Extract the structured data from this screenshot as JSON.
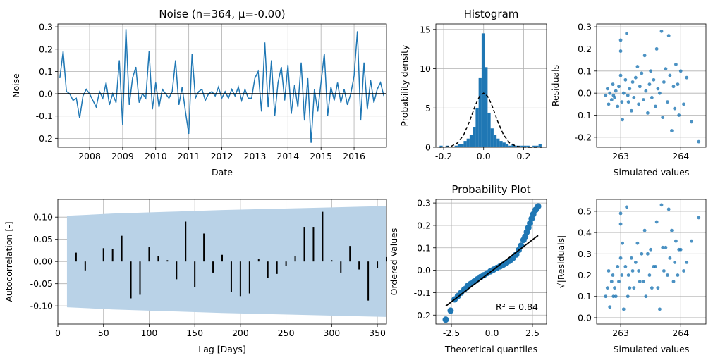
{
  "chart_data": [
    {
      "type": "line",
      "title": "Noise (n=364, μ=-0.00)",
      "xlabel": "Date",
      "ylabel": "Noise",
      "color": "#1f77b4",
      "grid": true,
      "x": [
        2007.1,
        2007.2,
        2007.3,
        2007.4,
        2007.5,
        2007.6,
        2007.7,
        2007.8,
        2007.9,
        2008.0,
        2008.1,
        2008.2,
        2008.3,
        2008.4,
        2008.5,
        2008.6,
        2008.7,
        2008.8,
        2008.9,
        2009.0,
        2009.1,
        2009.2,
        2009.3,
        2009.4,
        2009.5,
        2009.6,
        2009.7,
        2009.8,
        2009.9,
        2010.0,
        2010.1,
        2010.2,
        2010.3,
        2010.4,
        2010.5,
        2010.6,
        2010.7,
        2010.8,
        2010.9,
        2011.0,
        2011.1,
        2011.2,
        2011.3,
        2011.4,
        2011.5,
        2011.6,
        2011.7,
        2011.8,
        2011.9,
        2012.0,
        2012.1,
        2012.2,
        2012.3,
        2012.4,
        2012.5,
        2012.6,
        2012.7,
        2012.8,
        2012.9,
        2013.0,
        2013.1,
        2013.2,
        2013.3,
        2013.4,
        2013.5,
        2013.6,
        2013.7,
        2013.8,
        2013.9,
        2014.0,
        2014.1,
        2014.2,
        2014.3,
        2014.4,
        2014.5,
        2014.6,
        2014.7,
        2014.8,
        2014.9,
        2015.0,
        2015.1,
        2015.2,
        2015.3,
        2015.4,
        2015.5,
        2015.6,
        2015.7,
        2015.8,
        2015.9,
        2016.0,
        2016.1,
        2016.2,
        2016.3,
        2016.4,
        2016.5,
        2016.6,
        2016.7,
        2016.8,
        2016.9
      ],
      "values": [
        0.07,
        0.19,
        0.01,
        0.0,
        -0.03,
        -0.02,
        -0.11,
        -0.01,
        0.02,
        0.0,
        -0.03,
        -0.06,
        0.01,
        -0.02,
        0.05,
        -0.05,
        0.0,
        -0.04,
        0.15,
        -0.14,
        0.29,
        -0.05,
        0.07,
        0.12,
        -0.04,
        0.0,
        -0.02,
        0.19,
        -0.07,
        0.05,
        -0.06,
        0.02,
        0.0,
        -0.02,
        0.01,
        0.15,
        -0.05,
        0.03,
        -0.08,
        -0.18,
        0.18,
        -0.02,
        0.01,
        0.02,
        -0.03,
        0.0,
        0.01,
        -0.01,
        0.03,
        -0.02,
        0.01,
        -0.02,
        0.02,
        -0.01,
        0.03,
        -0.03,
        0.02,
        -0.02,
        -0.02,
        0.07,
        0.1,
        -0.08,
        0.23,
        -0.06,
        0.15,
        -0.1,
        0.05,
        0.12,
        -0.03,
        0.13,
        -0.09,
        0.04,
        -0.06,
        0.14,
        -0.12,
        0.07,
        -0.22,
        0.02,
        -0.08,
        0.05,
        0.18,
        -0.1,
        0.03,
        -0.03,
        0.05,
        -0.04,
        0.02,
        -0.05,
        0.0,
        0.08,
        0.28,
        -0.12,
        0.14,
        -0.07,
        0.06,
        -0.04,
        0.02,
        0.05,
        -0.01
      ],
      "reference_line": 0,
      "reference_color": "#000000",
      "xlim": [
        2007.04,
        2016.98
      ],
      "xticks": [
        2008,
        2009,
        2010,
        2011,
        2012,
        2013,
        2014,
        2015,
        2016
      ],
      "ylim": [
        -0.24,
        0.313
      ],
      "yticks": [
        -0.2,
        -0.1,
        {
          "value": 0,
          "label": "0.0"
        },
        0.1,
        0.2,
        0.3
      ]
    },
    {
      "type": "histogram",
      "title": "Histogram",
      "ylabel": "Probability density",
      "color": "#1f77b4",
      "grid": true,
      "bins": [
        -0.22,
        -0.205,
        -0.19,
        -0.175,
        -0.16,
        -0.145,
        -0.13,
        -0.115,
        -0.1,
        -0.085,
        -0.07,
        -0.055,
        -0.04,
        -0.025,
        -0.01,
        0.005,
        0.02,
        0.035,
        0.05,
        0.065,
        0.08,
        0.095,
        0.11,
        0.125,
        0.14,
        0.155,
        0.17,
        0.185,
        0.2,
        0.215,
        0.23,
        0.245,
        0.26,
        0.275,
        0.29
      ],
      "values": [
        0.2,
        0,
        0.2,
        0,
        0,
        0.2,
        0.4,
        0.4,
        0.8,
        1.1,
        1.6,
        2.6,
        5.0,
        8.8,
        14.5,
        10.2,
        4.4,
        2.4,
        1.6,
        1.1,
        0.8,
        0.6,
        0.4,
        0.2,
        0.4,
        0.2,
        0.2,
        0.2,
        0.2,
        0.2,
        0,
        0.2,
        0.2,
        0.4
      ],
      "curve": {
        "color": "#000000",
        "x": [
          -0.22,
          -0.19,
          -0.16,
          -0.13,
          -0.1,
          -0.07,
          -0.04,
          -0.02,
          0,
          0.02,
          0.04,
          0.07,
          0.1,
          0.13,
          0.16,
          0.19,
          0.22,
          0.25,
          0.29
        ],
        "values": [
          0.005,
          0.032,
          0.15,
          0.56,
          1.56,
          3.33,
          5.44,
          6.5,
          6.9,
          6.5,
          5.44,
          3.33,
          1.56,
          0.56,
          0.15,
          0.032,
          0.005,
          0.001,
          0
        ]
      },
      "xlim": [
        -0.239,
        0.315
      ],
      "xticks": [
        -0.2,
        {
          "value": 0,
          "label": "0.0"
        },
        0.2
      ],
      "ylim": [
        0,
        15.7
      ],
      "yticks": [
        0,
        5,
        10,
        15
      ]
    },
    {
      "type": "scatter",
      "xlabel": "Simulated values",
      "ylabel": "Residuals",
      "color": "#1f77b4",
      "grid": true,
      "x": [
        262.75,
        262.78,
        262.8,
        262.82,
        262.85,
        262.87,
        262.9,
        262.92,
        262.95,
        262.97,
        263.0,
        263.02,
        263.05,
        263.03,
        263.0,
        263.0,
        263.1,
        263.08,
        263.12,
        263.15,
        263.18,
        263.2,
        263.22,
        263.25,
        263.28,
        263.3,
        263.32,
        263.35,
        263.38,
        263.4,
        263.42,
        263.45,
        263.48,
        263.5,
        263.52,
        263.55,
        263.58,
        263.6,
        263.62,
        263.65,
        263.68,
        263.7,
        263.72,
        263.75,
        263.78,
        263.8,
        263.82,
        263.85,
        263.88,
        263.9,
        263.92,
        263.95,
        263.97,
        264.0,
        264.05,
        264.1,
        264.18,
        263.13,
        262.88,
        264.3
      ],
      "values": [
        -0.01,
        0.02,
        -0.05,
        0.0,
        -0.03,
        0.04,
        -0.02,
        0.01,
        -0.06,
        0.03,
        0.08,
        -0.04,
        0.0,
        -0.12,
        0.19,
        0.24,
        0.27,
        0.06,
        -0.01,
        0.02,
        -0.08,
        0.05,
        -0.02,
        0.07,
        0.12,
        -0.05,
        0.03,
        0.09,
        -0.03,
        0.17,
        0.01,
        -0.09,
        0.04,
        0.1,
        -0.02,
        0.06,
        -0.06,
        0.2,
        0.02,
        0.0,
        0.28,
        -0.11,
        0.05,
        0.11,
        -0.04,
        0.26,
        0.08,
        -0.17,
        0.03,
        -0.07,
        0.13,
        0.04,
        -0.1,
        0.1,
        -0.05,
        0.07,
        -0.13,
        -0.04,
        -0.01,
        -0.22
      ],
      "xlim": [
        262.6,
        264.42
      ],
      "xticks": [
        263,
        264
      ],
      "ylim": [
        -0.245,
        0.313
      ],
      "yticks": [
        -0.2,
        -0.1,
        {
          "value": 0,
          "label": "0.0"
        },
        0.1,
        0.2,
        0.3
      ]
    },
    {
      "type": "stem",
      "xlabel": "Lag [Days]",
      "ylabel": "Autocorrelation [-]",
      "color": "#000000",
      "grid": true,
      "x": [
        10,
        20,
        30,
        40,
        50,
        60,
        70,
        80,
        90,
        100,
        110,
        120,
        130,
        140,
        150,
        160,
        170,
        180,
        190,
        200,
        210,
        220,
        230,
        240,
        250,
        260,
        270,
        280,
        290,
        300,
        310,
        320,
        330,
        340,
        350,
        360
      ],
      "values": [
        0,
        0.02,
        -0.02,
        0,
        0.03,
        0.028,
        0.058,
        -0.083,
        -0.075,
        0.032,
        0.012,
        0.003,
        -0.04,
        0.09,
        -0.058,
        0.063,
        -0.025,
        0.015,
        -0.068,
        -0.078,
        -0.072,
        0.005,
        -0.037,
        -0.028,
        -0.01,
        0.012,
        0.078,
        0.078,
        0.112,
        0.003,
        -0.025,
        0.035,
        -0.018,
        -0.088,
        -0.015,
        0.01
      ],
      "band": {
        "color": "#b9d2e7",
        "x": [
          10,
          60,
          120,
          180,
          240,
          300,
          360
        ],
        "upper": [
          0.103,
          0.108,
          0.112,
          0.116,
          0.119,
          0.122,
          0.125
        ],
        "lower": [
          -0.103,
          -0.108,
          -0.112,
          -0.116,
          -0.119,
          -0.122,
          -0.125
        ]
      },
      "xlim": [
        0,
        360
      ],
      "xticks": [
        0,
        50,
        100,
        150,
        200,
        250,
        300,
        350
      ],
      "ylim": [
        -0.141,
        0.14
      ],
      "yticks": [
        {
          "value": -0.1,
          "label": "-0.10"
        },
        {
          "value": -0.05,
          "label": "-0.05"
        },
        {
          "value": 0,
          "label": "0.00"
        },
        {
          "value": 0.05,
          "label": "0.05"
        },
        {
          "value": 0.1,
          "label": "0.10"
        }
      ]
    },
    {
      "type": "scatter",
      "title": "Probability Plot",
      "xlabel": "Theoretical quantiles",
      "ylabel": "Ordered Values",
      "color": "#1f77b4",
      "grid": true,
      "x": [
        -2.85,
        -2.55,
        -2.3,
        -2.1,
        -1.9,
        -1.7,
        -1.5,
        -1.3,
        -1.1,
        -0.9,
        -0.7,
        -0.5,
        -0.3,
        -0.1,
        0.1,
        0.3,
        0.5,
        0.7,
        0.9,
        1.1,
        1.3,
        1.5,
        1.65,
        1.8,
        1.95,
        2.05,
        2.15,
        2.25,
        2.35,
        2.45,
        2.55,
        2.7,
        2.85
      ],
      "values": [
        -0.22,
        -0.18,
        -0.13,
        -0.115,
        -0.1,
        -0.085,
        -0.07,
        -0.06,
        -0.05,
        -0.04,
        -0.03,
        -0.022,
        -0.013,
        -0.005,
        0.003,
        0.01,
        0.017,
        0.025,
        0.033,
        0.042,
        0.055,
        0.07,
        0.09,
        0.11,
        0.135,
        0.15,
        0.17,
        0.19,
        0.21,
        0.23,
        0.25,
        0.27,
        0.285
      ],
      "fit": {
        "color": "#000000",
        "x": [
          -2.85,
          2.85
        ],
        "values": [
          -0.16,
          0.155
        ]
      },
      "annotation": "R² = 0.84",
      "xlim": [
        -3.46,
        3.37
      ],
      "xticks": [
        -2.5,
        {
          "value": 0,
          "label": "0.0"
        },
        2.5
      ],
      "ylim": [
        -0.24,
        0.316
      ],
      "yticks": [
        -0.2,
        -0.1,
        {
          "value": 0,
          "label": "0.0"
        },
        0.1,
        0.2,
        0.3
      ]
    },
    {
      "type": "scatter",
      "xlabel": "Simulated values",
      "ylabel": "√|Residuals|",
      "color": "#1f77b4",
      "grid": true,
      "x": [
        262.75,
        262.78,
        262.8,
        262.82,
        262.85,
        262.87,
        262.9,
        262.92,
        262.95,
        262.97,
        263.0,
        263.02,
        263.05,
        263.03,
        263.0,
        263.0,
        263.1,
        263.08,
        263.12,
        263.15,
        263.18,
        263.2,
        263.22,
        263.25,
        263.28,
        263.3,
        263.32,
        263.35,
        263.38,
        263.4,
        263.42,
        263.45,
        263.48,
        263.5,
        263.52,
        263.55,
        263.58,
        263.6,
        263.62,
        263.65,
        263.68,
        263.7,
        263.72,
        263.75,
        263.78,
        263.8,
        263.82,
        263.85,
        263.88,
        263.9,
        263.92,
        263.95,
        263.97,
        264.0,
        264.05,
        264.1,
        264.18,
        263.13,
        262.88,
        264.3
      ],
      "values": [
        0.1,
        0.14,
        0.22,
        0.05,
        0.17,
        0.2,
        0.14,
        0.1,
        0.24,
        0.17,
        0.28,
        0.2,
        0.04,
        0.35,
        0.44,
        0.49,
        0.52,
        0.24,
        0.1,
        0.14,
        0.28,
        0.22,
        0.14,
        0.26,
        0.35,
        0.22,
        0.17,
        0.3,
        0.17,
        0.41,
        0.1,
        0.3,
        0.2,
        0.32,
        0.14,
        0.24,
        0.24,
        0.45,
        0.14,
        0.04,
        0.53,
        0.33,
        0.22,
        0.33,
        0.2,
        0.51,
        0.28,
        0.41,
        0.17,
        0.26,
        0.36,
        0.2,
        0.32,
        0.32,
        0.22,
        0.26,
        0.36,
        0.2,
        0.1,
        0.47
      ],
      "xlim": [
        262.6,
        264.42
      ],
      "xticks": [
        263,
        264
      ],
      "ylim": [
        -0.03,
        0.556
      ],
      "yticks": [
        {
          "value": 0,
          "label": "0.0"
        },
        0.1,
        0.2,
        0.3,
        0.4,
        0.5
      ]
    }
  ]
}
